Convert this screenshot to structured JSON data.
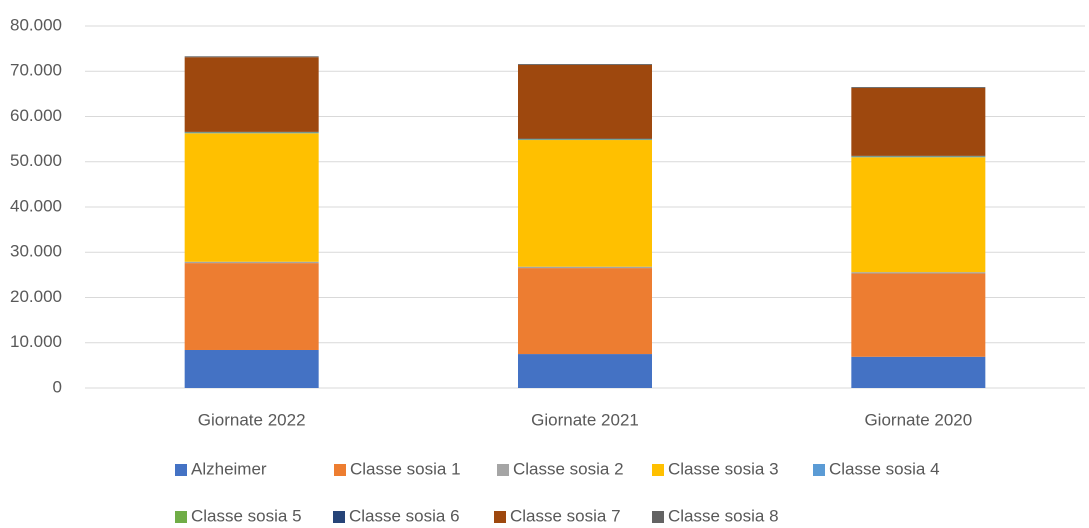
{
  "chart_data": {
    "type": "stacked-bar",
    "categories": [
      "Giornate 2022",
      "Giornate 2021",
      "Giornate 2020"
    ],
    "series": [
      {
        "name": "Alzheimer",
        "color": "#4472c4",
        "values": [
          8400,
          7500,
          6900
        ]
      },
      {
        "name": "Classe sosia 1",
        "color": "#ed7d31",
        "values": [
          19200,
          19000,
          18400
        ]
      },
      {
        "name": "Classe sosia 2",
        "color": "#a5a5a5",
        "values": [
          300,
          300,
          300
        ]
      },
      {
        "name": "Classe sosia 3",
        "color": "#ffc000",
        "values": [
          28400,
          28000,
          25400
        ]
      },
      {
        "name": "Classe sosia 4",
        "color": "#5b9bd5",
        "values": [
          100,
          100,
          100
        ]
      },
      {
        "name": "Classe sosia 5",
        "color": "#70ad47",
        "values": [
          100,
          100,
          100
        ]
      },
      {
        "name": "Classe sosia 6",
        "color": "#264478",
        "values": [
          100,
          100,
          100
        ]
      },
      {
        "name": "Classe sosia 7",
        "color": "#9e480e",
        "values": [
          16500,
          16300,
          15000
        ]
      },
      {
        "name": "Classe sosia 8",
        "color": "#636363",
        "values": [
          200,
          200,
          200
        ]
      }
    ],
    "ylim": [
      0,
      80000
    ],
    "yticks": [
      0,
      {
        "value": 10000,
        "label": "10.000"
      },
      {
        "value": 20000,
        "label": "20.000"
      },
      {
        "value": 30000,
        "label": "30.000"
      },
      {
        "value": 40000,
        "label": "40.000"
      },
      {
        "value": 50000,
        "label": "50.000"
      },
      {
        "value": 60000,
        "label": "60.000"
      },
      {
        "value": 70000,
        "label": "70.000"
      },
      {
        "value": 80000,
        "label": "80.000"
      }
    ],
    "grid": true,
    "legend": "bottom"
  }
}
